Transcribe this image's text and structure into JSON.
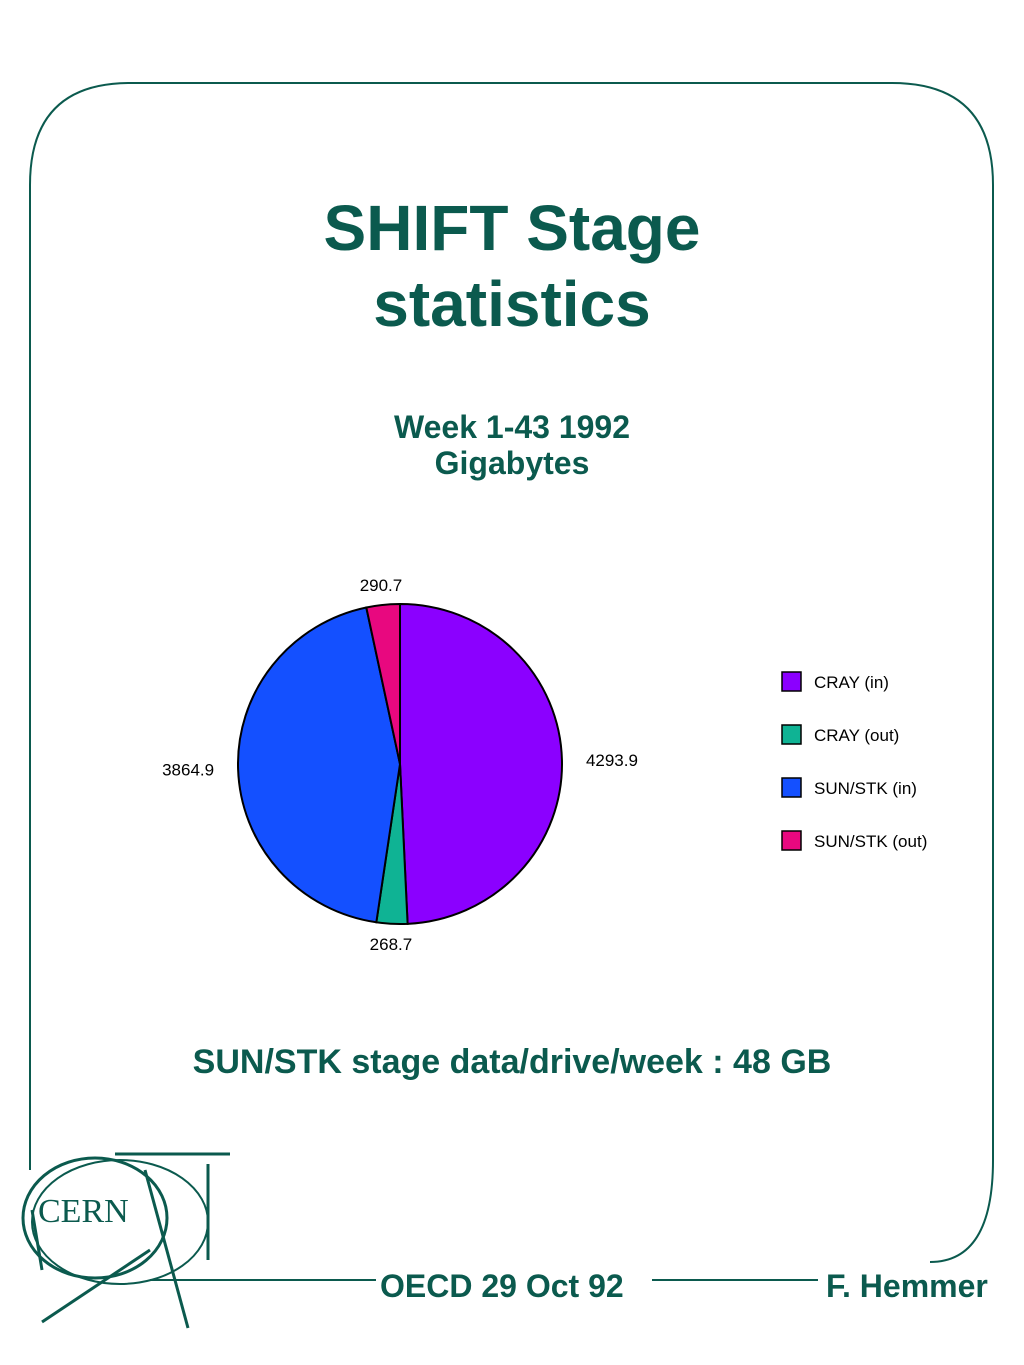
{
  "slide": {
    "title_line1": "SHIFT Stage",
    "title_line2": "statistics",
    "subtitle_line1": "Week 1-43 1992",
    "subtitle_line2": "Gigabytes",
    "footnote": "SUN/STK stage data/drive/week : 48 GB",
    "footer_event": "OECD 29 Oct 92",
    "footer_author": "F. Hemmer",
    "logo_text": "CERN",
    "accent_color": "#0b5a4e"
  },
  "chart_data": {
    "type": "pie",
    "title": "Week 1-43 1992",
    "unit": "Gigabytes",
    "start_angle_deg": 0,
    "direction": "clockwise",
    "legend_position": "right",
    "slices": [
      {
        "label": "CRAY (in)",
        "value": 4293.9,
        "value_label": "4293.9",
        "color": "#8b00ff"
      },
      {
        "label": "CRAY (out)",
        "value": 268.7,
        "value_label": "268.7",
        "color": "#0fb394"
      },
      {
        "label": "SUN/STK (in)",
        "value": 3864.9,
        "value_label": "3864.9",
        "color": "#1450ff"
      },
      {
        "label": "SUN/STK (out)",
        "value": 290.7,
        "value_label": "290.7",
        "color": "#e8087f"
      }
    ]
  }
}
